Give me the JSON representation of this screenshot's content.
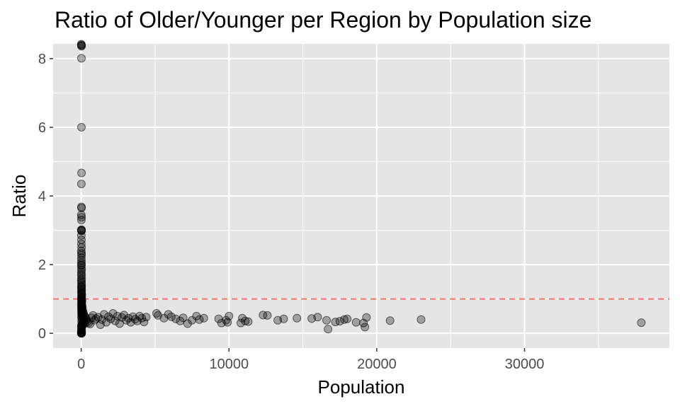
{
  "chart_data": {
    "type": "scatter",
    "title": "Ratio of Older/Younger per Region by Population size",
    "xlabel": "Population",
    "ylabel": "Ratio",
    "xlim": [
      -1900,
      39800
    ],
    "ylim": [
      -0.43,
      8.43
    ],
    "x_ticks": [
      0,
      10000,
      20000,
      30000
    ],
    "x_tick_labels": [
      "0",
      "10000",
      "20000",
      "30000"
    ],
    "y_ticks": [
      0,
      2,
      4,
      6,
      8
    ],
    "y_tick_labels": [
      "0",
      "2",
      "4",
      "6",
      "8"
    ],
    "grid": true,
    "reference_line": {
      "y": 1,
      "color": "#F8766D",
      "style": "dashed"
    },
    "colors": {
      "panel": "#E5E5E5",
      "grid": "#FFFFFF",
      "point": "#000000",
      "axis_text": "#4D4D4D",
      "label": "#000000"
    },
    "point_alpha": 0.3,
    "series": [
      {
        "points": [
          [
            12,
            8.4
          ],
          [
            18,
            8.38
          ],
          [
            8,
            8.42
          ],
          [
            22,
            8.36
          ],
          [
            15,
            8.01
          ],
          [
            18,
            6.0
          ],
          [
            20,
            4.67
          ],
          [
            14,
            4.35
          ],
          [
            16,
            3.68
          ],
          [
            22,
            3.65
          ],
          [
            10,
            3.45
          ],
          [
            24,
            3.38
          ],
          [
            12,
            3.3
          ],
          [
            16,
            3.02
          ],
          [
            20,
            3.0
          ],
          [
            8,
            3.0
          ],
          [
            24,
            2.98
          ],
          [
            12,
            2.85
          ],
          [
            18,
            2.72
          ],
          [
            14,
            2.6
          ],
          [
            20,
            2.5
          ],
          [
            10,
            2.4
          ],
          [
            16,
            2.33
          ],
          [
            22,
            2.28
          ],
          [
            12,
            2.2
          ],
          [
            18,
            2.12
          ],
          [
            14,
            2.05
          ],
          [
            20,
            2.0
          ],
          [
            10,
            1.97
          ],
          [
            16,
            1.9
          ],
          [
            24,
            1.84
          ],
          [
            12,
            1.78
          ],
          [
            18,
            1.72
          ],
          [
            14,
            1.67
          ],
          [
            26,
            1.6
          ],
          [
            10,
            1.55
          ],
          [
            20,
            1.5
          ],
          [
            16,
            1.45
          ],
          [
            30,
            1.4
          ],
          [
            12,
            1.36
          ],
          [
            22,
            1.33
          ],
          [
            18,
            1.29
          ],
          [
            34,
            1.25
          ],
          [
            14,
            1.21
          ],
          [
            26,
            1.18
          ],
          [
            20,
            1.15
          ],
          [
            40,
            1.12
          ],
          [
            16,
            1.08
          ],
          [
            30,
            1.05
          ],
          [
            24,
            1.02
          ],
          [
            12,
            1.0
          ],
          [
            36,
            0.98
          ],
          [
            20,
            0.96
          ],
          [
            50,
            0.93
          ],
          [
            18,
            0.9
          ],
          [
            28,
            0.88
          ],
          [
            42,
            0.85
          ],
          [
            14,
            0.83
          ],
          [
            60,
            0.8
          ],
          [
            22,
            0.78
          ],
          [
            34,
            0.76
          ],
          [
            80,
            0.74
          ],
          [
            16,
            0.72
          ],
          [
            46,
            0.7
          ],
          [
            26,
            0.68
          ],
          [
            100,
            0.66
          ],
          [
            38,
            0.64
          ],
          [
            20,
            0.63
          ],
          [
            130,
            0.62
          ],
          [
            55,
            0.6
          ],
          [
            30,
            0.58
          ],
          [
            160,
            0.57
          ],
          [
            70,
            0.55
          ],
          [
            24,
            0.54
          ],
          [
            200,
            0.52
          ],
          [
            90,
            0.5
          ],
          [
            40,
            0.49
          ],
          [
            250,
            0.48
          ],
          [
            120,
            0.46
          ],
          [
            18,
            0.45
          ],
          [
            300,
            0.44
          ],
          [
            150,
            0.42
          ],
          [
            60,
            0.4
          ],
          [
            350,
            0.39
          ],
          [
            180,
            0.37
          ],
          [
            28,
            0.35
          ],
          [
            420,
            0.34
          ],
          [
            210,
            0.32
          ],
          [
            80,
            0.3
          ],
          [
            500,
            0.3
          ],
          [
            240,
            0.28
          ],
          [
            36,
            0.26
          ],
          [
            600,
            0.27
          ],
          [
            110,
            0.24
          ],
          [
            14,
            0.22
          ],
          [
            20,
            0.2
          ],
          [
            30,
            0.17
          ],
          [
            12,
            0.14
          ],
          [
            24,
            0.1
          ],
          [
            18,
            0.06
          ],
          [
            10,
            0.03
          ],
          [
            16,
            0.01
          ],
          [
            22,
            0.0
          ],
          [
            8,
            0.0
          ],
          [
            20,
            0.0
          ],
          [
            14,
            0.0
          ],
          [
            26,
            0.0
          ],
          [
            12,
            0.01
          ],
          [
            18,
            0.02
          ],
          [
            30,
            0.05
          ],
          [
            700,
            0.45
          ],
          [
            800,
            0.52
          ],
          [
            900,
            0.38
          ],
          [
            1000,
            0.43
          ],
          [
            1150,
            0.47
          ],
          [
            1300,
            0.25
          ],
          [
            1400,
            0.4
          ],
          [
            1550,
            0.55
          ],
          [
            1700,
            0.32
          ],
          [
            1850,
            0.48
          ],
          [
            2000,
            0.42
          ],
          [
            2150,
            0.58
          ],
          [
            2300,
            0.36
          ],
          [
            2450,
            0.5
          ],
          [
            2600,
            0.28
          ],
          [
            2750,
            0.46
          ],
          [
            2900,
            0.53
          ],
          [
            3050,
            0.38
          ],
          [
            3200,
            0.44
          ],
          [
            3350,
            0.32
          ],
          [
            3500,
            0.48
          ],
          [
            3650,
            0.41
          ],
          [
            3800,
            0.36
          ],
          [
            3950,
            0.5
          ],
          [
            4100,
            0.44
          ],
          [
            4250,
            0.33
          ],
          [
            4400,
            0.47
          ],
          [
            5100,
            0.58
          ],
          [
            5200,
            0.52
          ],
          [
            5600,
            0.44
          ],
          [
            5900,
            0.55
          ],
          [
            6100,
            0.48
          ],
          [
            6400,
            0.42
          ],
          [
            6700,
            0.36
          ],
          [
            6900,
            0.45
          ],
          [
            7200,
            0.28
          ],
          [
            7500,
            0.38
          ],
          [
            7800,
            0.5
          ],
          [
            8000,
            0.4
          ],
          [
            8300,
            0.44
          ],
          [
            9300,
            0.42
          ],
          [
            9500,
            0.3
          ],
          [
            9800,
            0.38
          ],
          [
            9900,
            0.32
          ],
          [
            10000,
            0.5
          ],
          [
            10800,
            0.3
          ],
          [
            10900,
            0.44
          ],
          [
            11100,
            0.36
          ],
          [
            11300,
            0.34
          ],
          [
            12300,
            0.53
          ],
          [
            12600,
            0.52
          ],
          [
            13300,
            0.38
          ],
          [
            13700,
            0.42
          ],
          [
            14600,
            0.44
          ],
          [
            15600,
            0.43
          ],
          [
            16000,
            0.47
          ],
          [
            16600,
            0.38
          ],
          [
            16700,
            0.12
          ],
          [
            17200,
            0.33
          ],
          [
            17500,
            0.35
          ],
          [
            17800,
            0.4
          ],
          [
            18000,
            0.42
          ],
          [
            18600,
            0.32
          ],
          [
            19100,
            0.3
          ],
          [
            19200,
            0.18
          ],
          [
            19300,
            0.46
          ],
          [
            20900,
            0.37
          ],
          [
            23000,
            0.4
          ],
          [
            37900,
            0.31
          ]
        ]
      }
    ]
  }
}
